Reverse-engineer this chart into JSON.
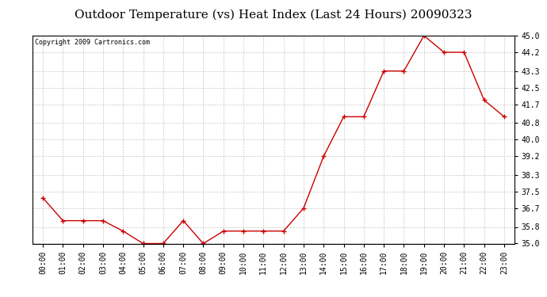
{
  "title": "Outdoor Temperature (vs) Heat Index (Last 24 Hours) 20090323",
  "copyright_text": "Copyright 2009 Cartronics.com",
  "x_labels": [
    "00:00",
    "01:00",
    "02:00",
    "03:00",
    "04:00",
    "05:00",
    "06:00",
    "07:00",
    "08:00",
    "09:00",
    "10:00",
    "11:00",
    "12:00",
    "13:00",
    "14:00",
    "15:00",
    "16:00",
    "17:00",
    "18:00",
    "19:00",
    "20:00",
    "21:00",
    "22:00",
    "23:00"
  ],
  "y_values": [
    37.2,
    36.1,
    36.1,
    36.1,
    35.6,
    35.0,
    35.0,
    36.1,
    35.0,
    35.6,
    35.6,
    35.6,
    35.6,
    36.7,
    39.2,
    41.1,
    41.1,
    43.3,
    43.3,
    45.0,
    44.2,
    44.2,
    41.9,
    41.1
  ],
  "line_color": "#cc0000",
  "marker": "+",
  "marker_color": "#cc0000",
  "background_color": "#ffffff",
  "plot_bg_color": "#ffffff",
  "grid_color": "#c8c8c8",
  "ylim_min": 35.0,
  "ylim_max": 45.0,
  "ytick_values": [
    35.0,
    35.8,
    36.7,
    37.5,
    38.3,
    39.2,
    40.0,
    40.8,
    41.7,
    42.5,
    43.3,
    44.2,
    45.0
  ],
  "title_fontsize": 11,
  "copyright_fontsize": 6,
  "tick_fontsize": 7
}
